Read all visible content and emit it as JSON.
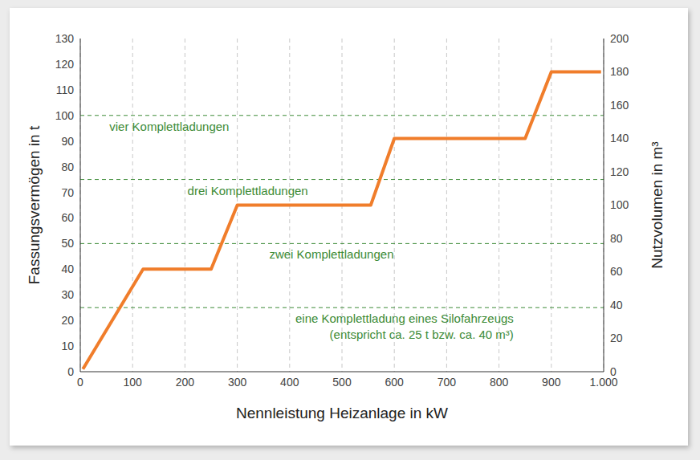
{
  "chart_data": {
    "type": "line",
    "x_label": "Nennleistung Heizanlage in kW",
    "y_label": "Fassungsvermögen in t",
    "y2_label": "Nutzvolumen in m³",
    "x": [
      5,
      120,
      250,
      300,
      555,
      600,
      850,
      900,
      995
    ],
    "values": [
      1,
      40,
      40,
      65,
      65,
      91,
      91,
      117,
      117
    ],
    "color": "#f07d2b",
    "xlim": [
      0,
      1000
    ],
    "xticks": [
      0,
      100,
      200,
      300,
      400,
      500,
      600,
      700,
      800,
      900,
      {
        "value": 1000,
        "label": "1.000"
      }
    ],
    "ylim": [
      0,
      130
    ],
    "yticks": [
      0,
      10,
      20,
      30,
      40,
      50,
      60,
      70,
      80,
      90,
      100,
      110,
      120,
      130
    ],
    "y2lim": [
      0,
      200
    ],
    "y2ticks": [
      0,
      20,
      40,
      60,
      80,
      100,
      120,
      140,
      160,
      180,
      200
    ],
    "grid": "x",
    "reference_lines": [
      {
        "value": 100,
        "color": "#3d8b37",
        "label": [
          "vier Komplettladungen"
        ]
      },
      {
        "value": 75,
        "color": "#3d8b37",
        "label": [
          "drei Komplettladungen"
        ]
      },
      {
        "value": 50,
        "color": "#3d8b37",
        "label": [
          "zwei Komplettladungen"
        ]
      },
      {
        "value": 25,
        "color": "#3d8b37",
        "label": [
          "eine Komplettladung eines Silofahrzeugs",
          "(entspricht ca. 25 t bzw. ca. 40 m³)"
        ]
      }
    ]
  }
}
